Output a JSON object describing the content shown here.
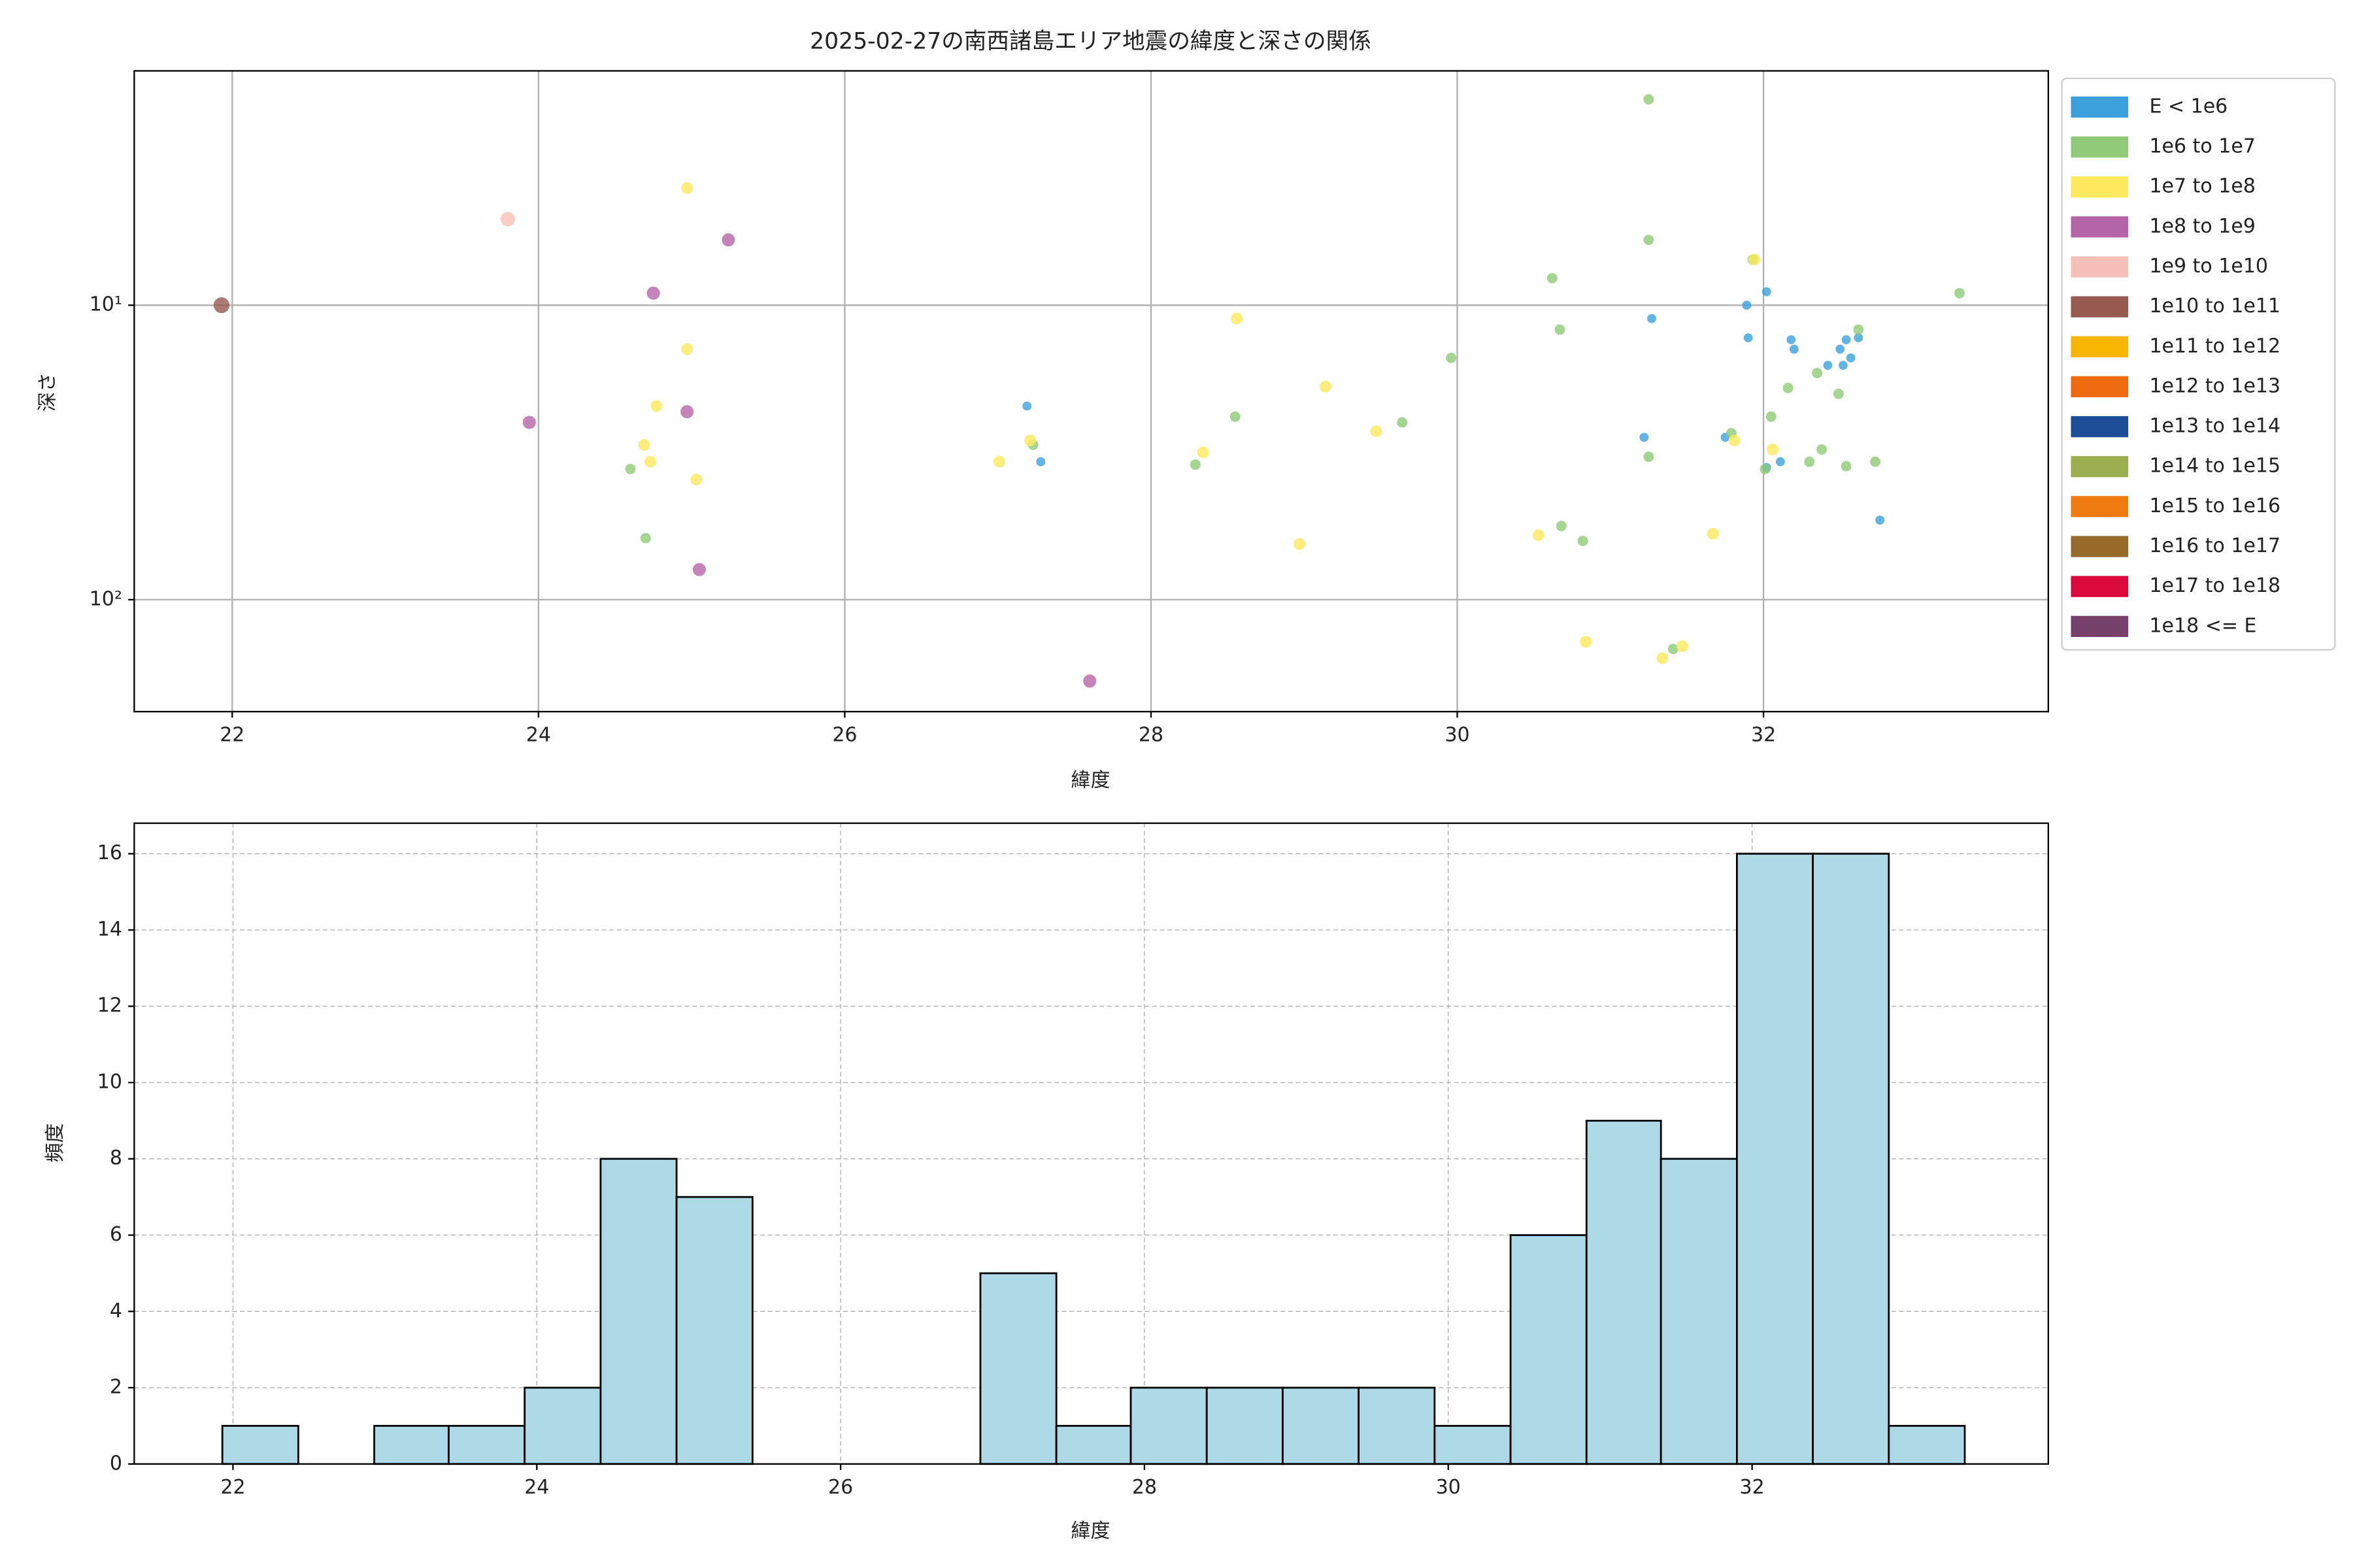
{
  "chart_data": [
    {
      "type": "scatter",
      "title": "2025-02-27の南西諸島エリア地震の緯度と深さの関係",
      "xlabel": "緯度",
      "ylabel": "深さ",
      "xlim": [
        21.36,
        33.86
      ],
      "xticks": [
        22,
        24,
        26,
        28,
        30,
        32
      ],
      "yscale": "log",
      "ylim": [
        240,
        1.6
      ],
      "yticks": [
        {
          "value": 10,
          "label": "10¹"
        },
        {
          "value": 100,
          "label": "10²"
        }
      ],
      "grid": true,
      "legend": "outside-right",
      "series": [
        {
          "name": "E < 1e6",
          "color": "#3ca0dc",
          "x": [
            27.19,
            27.28,
            31.27,
            31.22,
            31.89,
            32.02,
            31.9,
            32.18,
            32.2,
            31.75,
            32.02,
            32.11,
            32.42,
            32.5,
            32.54,
            32.62,
            32.52,
            32.57,
            32.76
          ],
          "y": [
            22.0,
            34.0,
            11.1,
            28.1,
            10,
            9.0,
            12.9,
            13.1,
            14.1,
            28.1,
            35.6,
            34.0,
            16.0,
            14.1,
            13.1,
            12.9,
            16.0,
            15.1,
            53.7
          ]
        },
        {
          "name": "1e6 to 1e7",
          "color": "#90c978",
          "x": [
            31.25,
            31.25,
            31.93,
            30.62,
            33.28,
            30.67,
            32.62,
            29.96,
            32.16,
            32.49,
            29.64,
            28.55,
            27.23,
            32.05,
            31.79,
            32.35,
            32.38,
            32.3,
            32.73,
            32.54,
            31.25,
            32.01,
            28.29,
            24.6,
            24.7,
            30.68,
            30.82,
            31.41
          ],
          "y": [
            2.0,
            6.0,
            7.0,
            8.1,
            9.1,
            12.1,
            12.1,
            15.1,
            19.1,
            20.0,
            25.0,
            23.9,
            29.8,
            23.9,
            27.2,
            17.0,
            30.9,
            34.0,
            34.0,
            35.2,
            32.7,
            36.0,
            34.8,
            36.0,
            61.8,
            56.2,
            63.2,
            147
          ]
        },
        {
          "name": "1e7 to 1e8",
          "color": "#fde85e",
          "x": [
            24.97,
            24.97,
            24.77,
            24.69,
            24.73,
            25.03,
            28.56,
            29.14,
            29.47,
            28.34,
            27.01,
            27.21,
            28.97,
            31.94,
            31.81,
            32.06,
            30.53,
            31.67,
            30.84,
            31.34,
            31.47
          ],
          "y": [
            4.0,
            14.1,
            22.0,
            29.8,
            34.0,
            39.1,
            11.1,
            18.9,
            26.8,
            31.6,
            34.0,
            28.8,
            64.7,
            7.0,
            28.8,
            30.9,
            60.4,
            59.7,
            139,
            158,
            144
          ]
        },
        {
          "name": "1e8 to 1e9",
          "color": "#b565a7",
          "x": [
            25.24,
            24.75,
            23.94,
            24.97,
            25.05,
            27.6
          ],
          "y": [
            6.0,
            9.1,
            25.0,
            23.0,
            79.0,
            189
          ]
        },
        {
          "name": "1e9 to 1e10",
          "color": "#f5c0b8",
          "x": [
            23.8
          ],
          "y": [
            5.1
          ]
        },
        {
          "name": "1e10 to 1e11",
          "color": "#965a50",
          "x": [
            21.93
          ],
          "y": [
            10
          ]
        },
        {
          "name": "1e11 to 1e12",
          "color": "#f8b500",
          "x": [],
          "y": []
        },
        {
          "name": "1e12 to 1e13",
          "color": "#ee6a0f",
          "x": [],
          "y": []
        },
        {
          "name": "1e13 to 1e14",
          "color": "#1c4d96",
          "x": [],
          "y": []
        },
        {
          "name": "1e14 to 1e15",
          "color": "#9caf50",
          "x": [],
          "y": []
        },
        {
          "name": "1e15 to 1e16",
          "color": "#ee7a10",
          "x": [],
          "y": []
        },
        {
          "name": "1e16 to 1e17",
          "color": "#966b2a",
          "x": [],
          "y": []
        },
        {
          "name": "1e17 to 1e18",
          "color": "#dc0a3c",
          "x": [],
          "y": []
        },
        {
          "name": "1e18 <= E",
          "color": "#763f6c",
          "x": [],
          "y": []
        }
      ]
    },
    {
      "type": "histogram",
      "xlabel": "緯度",
      "ylabel": "頻度",
      "xlim": [
        21.35,
        33.95
      ],
      "xticks": [
        22,
        24,
        26,
        28,
        30,
        32
      ],
      "ylim": [
        0,
        16.8
      ],
      "yticks": [
        0,
        2,
        4,
        6,
        8,
        10,
        12,
        14,
        16
      ],
      "grid": "dashed",
      "color": "#add8e6",
      "edgecolor": "#000000",
      "bins": [
        21.93,
        22.43,
        22.93,
        23.42,
        23.92,
        24.42,
        24.92,
        25.42,
        25.92,
        26.42,
        26.92,
        27.42,
        27.91,
        28.41,
        28.91,
        29.41,
        29.91,
        30.41,
        30.91,
        31.4,
        31.9,
        32.4,
        32.9,
        33.4
      ],
      "values": [
        1,
        0,
        1,
        1,
        2,
        8,
        7,
        0,
        0,
        0,
        5,
        1,
        2,
        2,
        2,
        2,
        1,
        6,
        9,
        8,
        16,
        16,
        1
      ]
    }
  ]
}
